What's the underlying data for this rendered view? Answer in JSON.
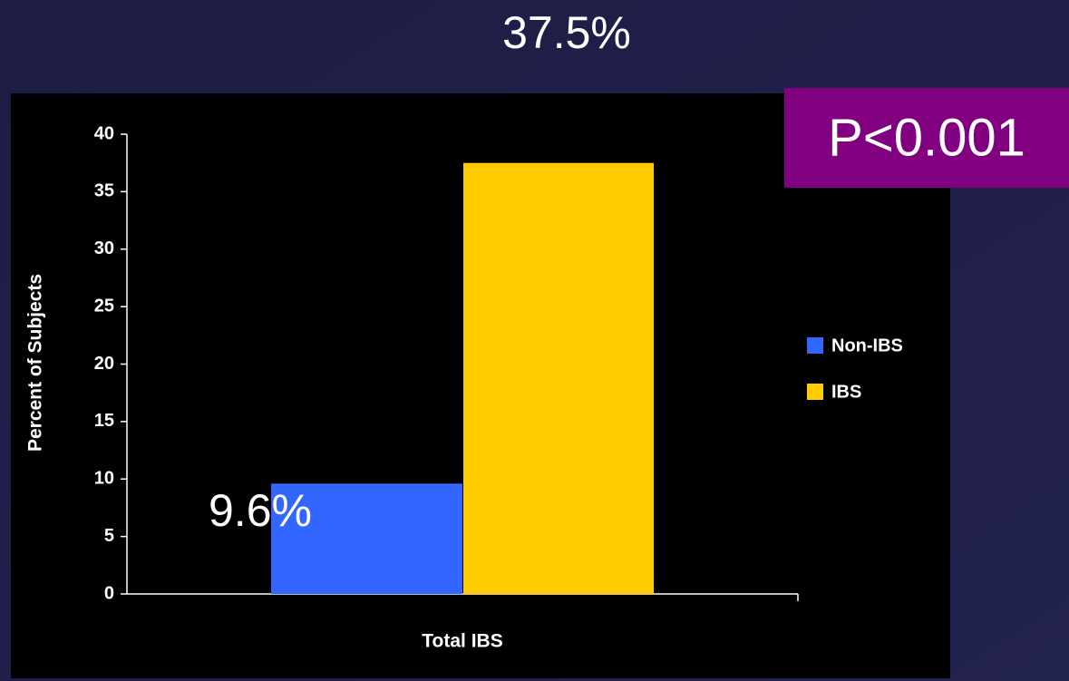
{
  "chart_data": {
    "type": "bar",
    "categories": [
      "Total IBS"
    ],
    "series": [
      {
        "name": "Non-IBS",
        "color": "#3366ff",
        "values": [
          9.6
        ],
        "value_labels": [
          "9.6%"
        ]
      },
      {
        "name": "IBS",
        "color": "#ffcc00",
        "values": [
          37.5
        ],
        "value_labels": [
          "37.5%"
        ]
      }
    ],
    "xlabel": "Total IBS",
    "ylabel": "Percent of Subjects",
    "annotation": "P<0.001",
    "ylim": [
      0,
      40
    ],
    "yticks": [
      0,
      5,
      10,
      15,
      20,
      25,
      30,
      35,
      40
    ],
    "legend": "right"
  }
}
